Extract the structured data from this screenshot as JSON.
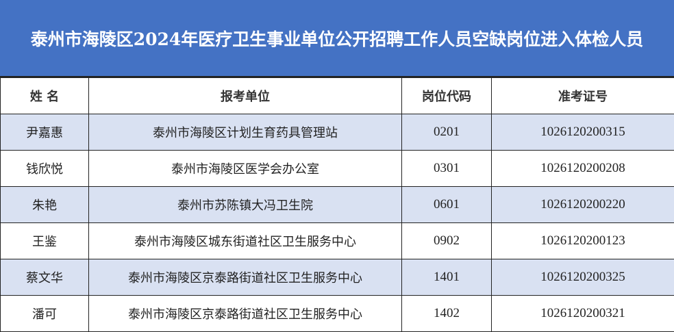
{
  "title": "泰州市海陵区2024年医疗卫生事业单位公开招聘工作人员空缺岗位进入体检人员",
  "colors": {
    "title_bg": "#4472C4",
    "stripe": "#D9E1F2"
  },
  "table": {
    "headers": [
      "姓 名",
      "报考单位",
      "岗位代码",
      "准考证号"
    ],
    "rows": [
      {
        "name": "尹嘉惠",
        "unit": "泰州市海陵区计划生育药具管理站",
        "code": "0201",
        "exam_no": "1026120200315"
      },
      {
        "name": "钱欣悦",
        "unit": "泰州市海陵区医学会办公室",
        "code": "0301",
        "exam_no": "1026120200208"
      },
      {
        "name": "朱艳",
        "unit": "泰州市苏陈镇大冯卫生院",
        "code": "0601",
        "exam_no": "1026120200220"
      },
      {
        "name": "王鉴",
        "unit": "泰州市海陵区城东街道社区卫生服务中心",
        "code": "0902",
        "exam_no": "1026120200123"
      },
      {
        "name": "蔡文华",
        "unit": "泰州市海陵区京泰路街道社区卫生服务中心",
        "code": "1401",
        "exam_no": "1026120200325"
      },
      {
        "name": "潘可",
        "unit": "泰州市海陵区京泰路街道社区卫生服务中心",
        "code": "1402",
        "exam_no": "1026120200321"
      }
    ]
  }
}
